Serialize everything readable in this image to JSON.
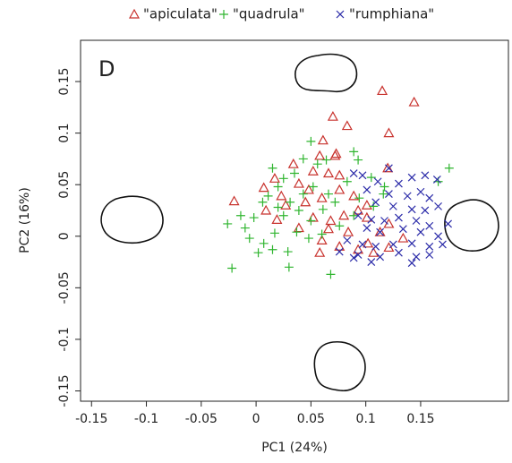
{
  "chart_data": {
    "type": "scatter",
    "annotation": "D",
    "x_label": "PC1 (24%)",
    "y_label": "PC2 (16%)",
    "xlim": [
      -0.16,
      0.23
    ],
    "ylim": [
      -0.16,
      0.19
    ],
    "xticks": [
      -0.15,
      -0.1,
      -0.05,
      0,
      0.05,
      0.1,
      0.15
    ],
    "yticks": [
      -0.15,
      -0.1,
      -0.05,
      0,
      0.05,
      0.1,
      0.15
    ],
    "series": [
      {
        "name": "\"apiculata\"",
        "color": "#c8322d",
        "marker": "triangle",
        "x": [
          0.115,
          0.144,
          0.07,
          0.121,
          0.083,
          -0.02,
          0.007,
          0.017,
          0.034,
          0.058,
          0.072,
          0.052,
          0.066,
          0.076,
          0.039,
          0.023,
          0.009,
          0.027,
          0.045,
          0.06,
          0.076,
          0.089,
          0.052,
          0.068,
          0.08,
          0.093,
          0.101,
          0.066,
          0.084,
          0.06,
          0.076,
          0.093,
          0.102,
          0.113,
          0.121,
          0.107,
          0.121,
          0.134,
          0.039,
          0.019,
          0.12,
          0.058,
          0.073,
          0.061,
          0.101,
          0.048
        ],
        "y": [
          0.141,
          0.13,
          0.116,
          0.1,
          0.107,
          0.034,
          0.047,
          0.056,
          0.07,
          0.078,
          0.078,
          0.063,
          0.061,
          0.059,
          0.051,
          0.039,
          0.025,
          0.03,
          0.033,
          0.037,
          0.045,
          0.039,
          0.018,
          0.015,
          0.02,
          0.025,
          0.03,
          0.007,
          0.004,
          -0.004,
          -0.01,
          -0.013,
          -0.007,
          0.004,
          0.012,
          -0.016,
          -0.011,
          -0.002,
          0.008,
          0.016,
          0.066,
          -0.016,
          0.08,
          0.093,
          0.018,
          0.045
        ]
      },
      {
        "name": "\"quadrula\"",
        "color": "#2fb52f",
        "marker": "plus",
        "x": [
          -0.022,
          -0.026,
          -0.01,
          -0.006,
          0.007,
          0.002,
          0.015,
          0.029,
          0.03,
          0.006,
          0.011,
          0.02,
          0.035,
          0.05,
          0.043,
          0.056,
          0.064,
          0.089,
          0.093,
          0.105,
          0.117,
          0.166,
          0.176,
          0.068,
          0.025,
          0.039,
          0.05,
          0.061,
          0.072,
          0.048,
          0.037,
          0.017,
          -0.002,
          -0.014,
          0.083,
          0.094,
          0.052,
          0.066,
          0.043,
          0.031,
          0.02,
          0.076,
          0.06,
          0.089,
          0.107,
          0.116,
          0.015,
          0.025
        ],
        "y": [
          -0.031,
          0.012,
          0.008,
          -0.002,
          -0.007,
          -0.016,
          -0.013,
          -0.015,
          -0.03,
          0.033,
          0.039,
          0.048,
          0.061,
          0.092,
          0.075,
          0.07,
          0.074,
          0.082,
          0.074,
          0.057,
          0.048,
          0.053,
          0.066,
          -0.037,
          0.02,
          0.025,
          0.015,
          0.026,
          0.033,
          -0.002,
          0.004,
          0.003,
          0.018,
          0.02,
          0.053,
          0.037,
          0.048,
          0.041,
          0.041,
          0.033,
          0.028,
          0.01,
          0.002,
          0.02,
          0.029,
          0.041,
          0.066,
          0.056
        ]
      },
      {
        "name": "\"rumphiana\"",
        "color": "#2a2aa8",
        "marker": "cross",
        "x": [
          0.121,
          0.089,
          0.097,
          0.111,
          0.13,
          0.142,
          0.154,
          0.165,
          0.101,
          0.121,
          0.138,
          0.15,
          0.158,
          0.109,
          0.125,
          0.142,
          0.154,
          0.166,
          0.093,
          0.105,
          0.117,
          0.13,
          0.146,
          0.158,
          0.175,
          0.101,
          0.113,
          0.134,
          0.15,
          0.166,
          0.083,
          0.097,
          0.109,
          0.125,
          0.142,
          0.158,
          0.17,
          0.076,
          0.093,
          0.113,
          0.13,
          0.146,
          0.158,
          0.142,
          0.105,
          0.089
        ],
        "y": [
          0.066,
          0.061,
          0.059,
          0.053,
          0.051,
          0.057,
          0.059,
          0.055,
          0.045,
          0.041,
          0.039,
          0.043,
          0.037,
          0.033,
          0.029,
          0.026,
          0.025,
          0.029,
          0.02,
          0.016,
          0.015,
          0.018,
          0.015,
          0.01,
          0.012,
          0.008,
          0.004,
          0.007,
          0.004,
          0.0,
          -0.004,
          -0.008,
          -0.01,
          -0.008,
          -0.007,
          -0.01,
          -0.008,
          -0.015,
          -0.018,
          -0.02,
          -0.016,
          -0.02,
          -0.018,
          -0.026,
          -0.025,
          -0.021
        ]
      }
    ]
  }
}
